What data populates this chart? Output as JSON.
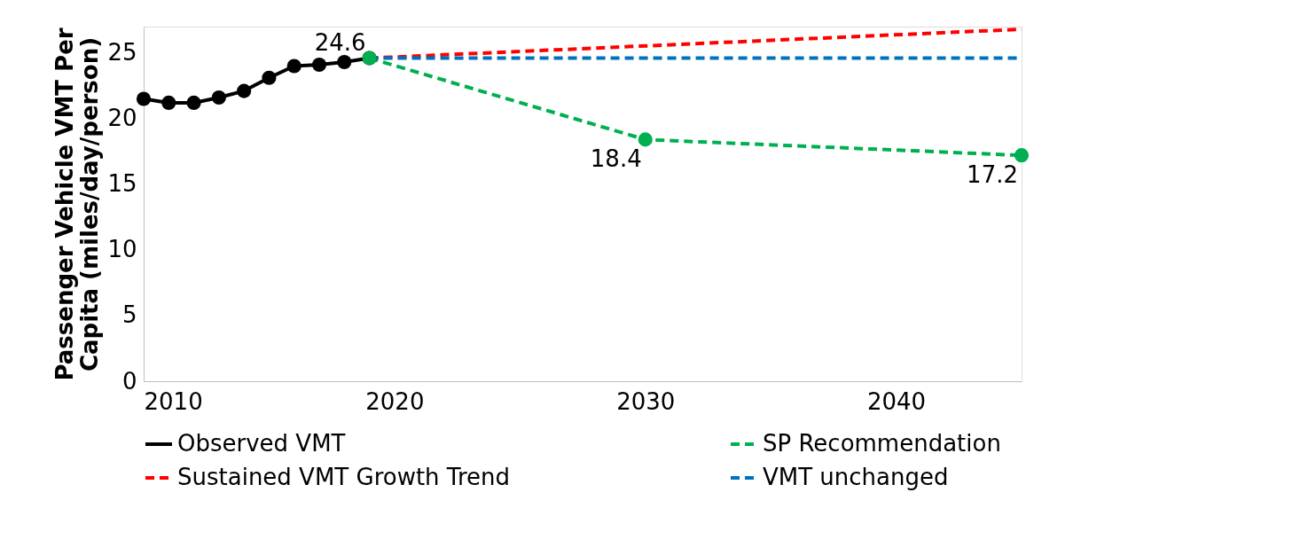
{
  "chart_data": {
    "type": "line",
    "ylabel": "Passenger Vehicle VMT Per Capita (miles/day/person)",
    "xlim": [
      2010,
      2045
    ],
    "xticks": [
      2010,
      2020,
      2030,
      2040
    ],
    "ylim": [
      0,
      27
    ],
    "yticks": [
      0,
      5,
      10,
      15,
      20,
      25
    ],
    "grid": false,
    "legend": "bottom",
    "series": [
      {
        "name": "Observed VMT",
        "color": "#000000",
        "marker": "circle",
        "line_style": "solid",
        "x": [
          2010,
          2011,
          2012,
          2013,
          2014,
          2015,
          2016,
          2017,
          2018,
          2019
        ],
        "values": [
          21.5,
          21.2,
          21.2,
          21.6,
          22.1,
          23.1,
          24.0,
          24.1,
          24.3,
          24.6
        ],
        "value_labels": [
          null,
          null,
          null,
          null,
          null,
          null,
          null,
          null,
          null,
          "24.6"
        ]
      },
      {
        "name": "SP Recommendation",
        "color": "#00b050",
        "marker": "circle",
        "line_style": "dashed",
        "x": [
          2019,
          2030,
          2045
        ],
        "values": [
          24.6,
          18.4,
          17.2
        ],
        "value_labels": [
          null,
          "18.4",
          "17.2"
        ]
      },
      {
        "name": "Sustained VMT Growth Trend",
        "color": "#ff0000",
        "marker": "none",
        "line_style": "dashed",
        "x": [
          2019,
          2045
        ],
        "values": [
          24.6,
          26.8
        ]
      },
      {
        "name": "VMT unchanged",
        "color": "#0070c0",
        "marker": "none",
        "line_style": "dashed",
        "x": [
          2019,
          2045
        ],
        "values": [
          24.6,
          24.6
        ]
      }
    ]
  }
}
